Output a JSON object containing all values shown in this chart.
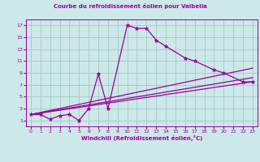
{
  "title": "Courbe du refroidissement éolien pour Valbella",
  "xlabel": "Windchill (Refroidissement éolien,°C)",
  "background_color": "#cce8e8",
  "grid_color": "#aacccc",
  "line_color": "#990099",
  "xlim": [
    -0.5,
    23.5
  ],
  "ylim": [
    0.0,
    18.0
  ],
  "xticks": [
    0,
    1,
    2,
    3,
    4,
    5,
    6,
    7,
    8,
    9,
    10,
    11,
    12,
    13,
    14,
    15,
    16,
    17,
    18,
    19,
    20,
    21,
    22,
    23
  ],
  "yticks": [
    1,
    3,
    5,
    7,
    9,
    11,
    13,
    15,
    17
  ],
  "series_main": {
    "x": [
      0,
      1,
      2,
      3,
      4,
      5,
      6,
      7,
      8,
      10,
      11,
      12,
      13,
      14,
      16,
      17,
      19,
      20,
      22,
      23
    ],
    "y": [
      2.0,
      2.0,
      1.2,
      1.8,
      2.0,
      1.0,
      3.0,
      8.8,
      3.0,
      17.0,
      16.5,
      16.5,
      14.5,
      13.5,
      11.5,
      11.0,
      9.5,
      9.0,
      7.5,
      7.5
    ]
  },
  "series_lines": [
    {
      "x": [
        0,
        23
      ],
      "y": [
        2.0,
        7.5
      ]
    },
    {
      "x": [
        0,
        23
      ],
      "y": [
        2.0,
        8.2
      ]
    },
    {
      "x": [
        0,
        23
      ],
      "y": [
        2.0,
        9.8
      ]
    }
  ]
}
